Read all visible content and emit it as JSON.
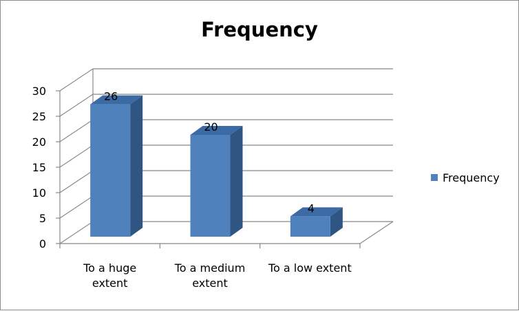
{
  "chart_data": {
    "type": "bar",
    "title": "Frequency",
    "categories": [
      "To a huge extent",
      "To a medium extent",
      "To a low extent"
    ],
    "category_lines": [
      [
        "To a huge",
        "extent"
      ],
      [
        "To a medium",
        "extent"
      ],
      [
        "To a low extent"
      ]
    ],
    "series": [
      {
        "name": "Frequency",
        "values": [
          26,
          20,
          4
        ]
      }
    ],
    "data_labels": [
      "26",
      "20",
      "4"
    ],
    "ylim": [
      0,
      30
    ],
    "yticks": [
      0,
      5,
      10,
      15,
      20,
      25,
      30
    ],
    "xlabel": "",
    "ylabel": "",
    "grid": true,
    "legend_position": "right",
    "style": "3d-column",
    "colors": {
      "bar_front": "#4f81bd",
      "bar_side": "#2f5582",
      "bar_top": "#3c6aa5",
      "grid": "#888888",
      "axis": "#888888"
    }
  }
}
